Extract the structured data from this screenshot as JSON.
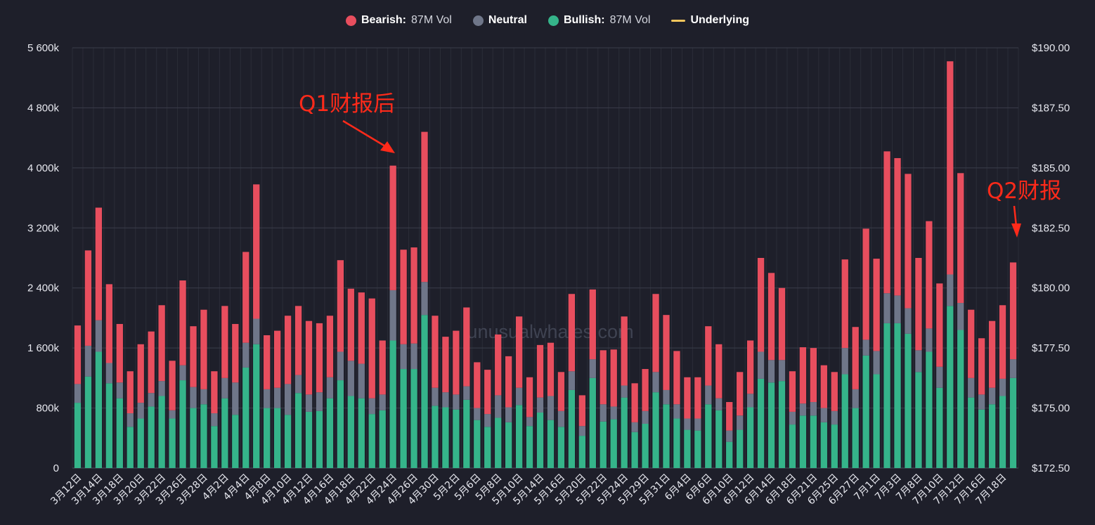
{
  "legend": [
    {
      "name": "Bearish:",
      "extra": "87M Vol",
      "color": "#e84e5e",
      "shape": "dot"
    },
    {
      "name": "Neutral",
      "extra": "",
      "color": "#6f7689",
      "shape": "dot"
    },
    {
      "name": "Bullish:",
      "extra": "87M Vol",
      "color": "#35b48a",
      "shape": "dot"
    },
    {
      "name": "Underlying",
      "extra": "",
      "color": "#f4c65c",
      "shape": "line"
    }
  ],
  "watermark": "unusualwhales.com",
  "annotations": {
    "q1": "Q1财报后",
    "q2": "Q2财报"
  },
  "colors": {
    "background": "#1e1f2a",
    "bearish": "#e84e5e",
    "neutral": "#6f7689",
    "bullish": "#35b48a",
    "annotation": "#ff2a1a"
  },
  "chart_data": {
    "type": "bar",
    "stacked": true,
    "y_left": {
      "ylim": [
        0,
        5600000
      ],
      "ticks": [
        0,
        800000,
        1600000,
        2400000,
        3200000,
        4000000,
        4800000,
        5600000
      ],
      "tick_labels": [
        "0",
        "800k",
        "1 600k",
        "2 400k",
        "3 200k",
        "4 000k",
        "4 800k",
        "5 600k"
      ]
    },
    "y_right": {
      "ylim": [
        172.5,
        190.0
      ],
      "tick_labels": [
        "$172.50",
        "$175.00",
        "$177.50",
        "$180.00",
        "$182.50",
        "$185.00",
        "$187.50",
        "$190.00"
      ]
    },
    "x_tick_labels": [
      "3月12日",
      "3月14日",
      "3月18日",
      "3月20日",
      "3月22日",
      "3月26日",
      "3月28日",
      "4月2日",
      "4月4日",
      "4月8日",
      "4月10日",
      "4月12日",
      "4月16日",
      "4月18日",
      "4月22日",
      "4月24日",
      "4月26日",
      "4月30日",
      "5月2日",
      "5月6日",
      "5月8日",
      "5月10日",
      "5月14日",
      "5月16日",
      "5月20日",
      "5月22日",
      "5月24日",
      "5月29日",
      "5月31日",
      "6月4日",
      "6月6日",
      "6月10日",
      "6月12日",
      "6月14日",
      "6月18日",
      "6月21日",
      "6月25日",
      "6月27日",
      "7月1日",
      "7月3日",
      "7月8日",
      "7月10日",
      "7月12日",
      "7月16日",
      "7月18日"
    ],
    "label_every": 2,
    "bar_count": 90,
    "series": [
      {
        "name": "Bullish",
        "values": [
          870000,
          1220000,
          1550000,
          1130000,
          930000,
          550000,
          660000,
          820000,
          960000,
          660000,
          1170000,
          800000,
          850000,
          560000,
          930000,
          710000,
          1340000,
          1650000,
          800000,
          800000,
          710000,
          1000000,
          750000,
          760000,
          930000,
          1170000,
          960000,
          930000,
          720000,
          770000,
          1700000,
          1320000,
          1320000,
          2040000,
          830000,
          810000,
          780000,
          910000,
          640000,
          550000,
          670000,
          610000,
          840000,
          560000,
          740000,
          640000,
          550000,
          1040000,
          430000,
          1200000,
          620000,
          650000,
          940000,
          480000,
          590000,
          1010000,
          850000,
          660000,
          510000,
          500000,
          850000,
          770000,
          350000,
          510000,
          810000,
          1190000,
          1140000,
          1160000,
          580000,
          700000,
          700000,
          610000,
          580000,
          1250000,
          800000,
          1500000,
          1250000,
          1930000,
          1930000,
          1790000,
          1280000,
          1550000,
          1070000,
          2160000,
          1840000,
          940000,
          780000,
          850000,
          960000,
          1200000
        ]
      },
      {
        "name": "Neutral",
        "values": [
          250000,
          410000,
          420000,
          270000,
          210000,
          180000,
          210000,
          180000,
          200000,
          110000,
          200000,
          280000,
          200000,
          170000,
          270000,
          430000,
          330000,
          340000,
          250000,
          270000,
          410000,
          240000,
          230000,
          250000,
          280000,
          380000,
          470000,
          460000,
          210000,
          210000,
          670000,
          330000,
          340000,
          440000,
          240000,
          200000,
          200000,
          180000,
          160000,
          170000,
          300000,
          200000,
          230000,
          120000,
          200000,
          320000,
          210000,
          250000,
          130000,
          250000,
          230000,
          170000,
          160000,
          130000,
          170000,
          270000,
          190000,
          190000,
          150000,
          160000,
          250000,
          160000,
          150000,
          190000,
          180000,
          360000,
          300000,
          280000,
          170000,
          160000,
          180000,
          190000,
          180000,
          350000,
          250000,
          210000,
          310000,
          400000,
          370000,
          340000,
          290000,
          310000,
          280000,
          420000,
          360000,
          260000,
          200000,
          220000,
          230000,
          250000
        ]
      },
      {
        "name": "Bearish",
        "values": [
          780000,
          1270000,
          1500000,
          1050000,
          780000,
          560000,
          780000,
          820000,
          1010000,
          660000,
          1130000,
          810000,
          1060000,
          560000,
          960000,
          780000,
          1210000,
          1790000,
          720000,
          760000,
          910000,
          920000,
          980000,
          920000,
          820000,
          1220000,
          960000,
          950000,
          1330000,
          720000,
          1660000,
          1260000,
          1280000,
          2000000,
          960000,
          740000,
          850000,
          1050000,
          610000,
          590000,
          810000,
          680000,
          950000,
          530000,
          700000,
          710000,
          520000,
          1030000,
          410000,
          930000,
          720000,
          760000,
          920000,
          520000,
          560000,
          1040000,
          1000000,
          710000,
          550000,
          550000,
          790000,
          720000,
          380000,
          580000,
          710000,
          1250000,
          1160000,
          960000,
          540000,
          750000,
          720000,
          570000,
          520000,
          1180000,
          830000,
          1480000,
          1230000,
          1890000,
          1830000,
          1790000,
          1230000,
          1430000,
          1110000,
          2840000,
          1730000,
          910000,
          750000,
          890000,
          980000,
          1290000
        ]
      }
    ],
    "grid": true
  }
}
